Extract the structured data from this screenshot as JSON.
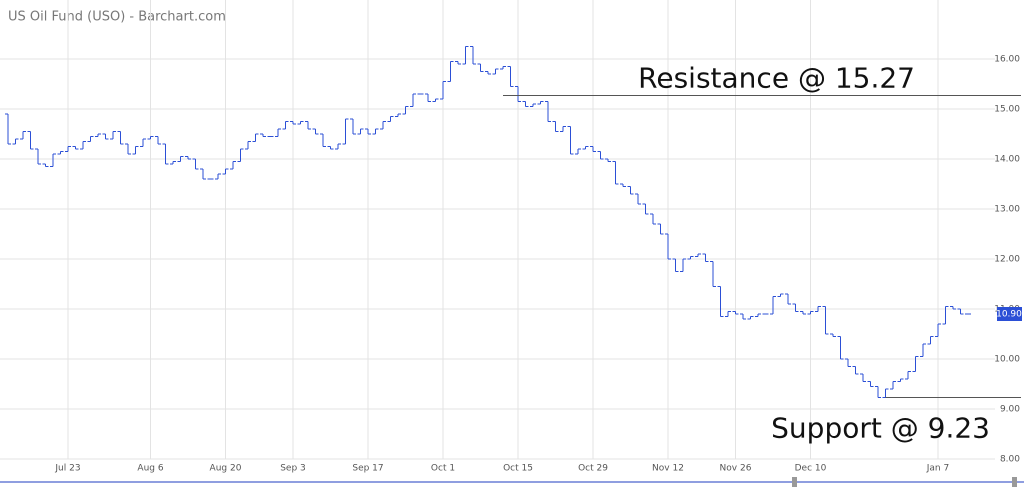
{
  "chart_data": {
    "type": "ohlc",
    "title": "US Oil Fund (USO) - Barchart.com",
    "categories": [
      null,
      null,
      null,
      null,
      null,
      null,
      null,
      null,
      "Jul 23",
      null,
      null,
      null,
      null,
      null,
      null,
      null,
      null,
      null,
      null,
      "Aug 6",
      null,
      null,
      null,
      null,
      null,
      null,
      null,
      null,
      null,
      "Aug 20",
      null,
      null,
      null,
      null,
      null,
      null,
      null,
      null,
      "Sep 3",
      null,
      null,
      null,
      null,
      null,
      null,
      null,
      null,
      null,
      "Sep 17",
      null,
      null,
      null,
      null,
      null,
      null,
      null,
      null,
      null,
      "Oct 1",
      null,
      null,
      null,
      null,
      null,
      null,
      null,
      null,
      null,
      "Oct 15",
      null,
      null,
      null,
      null,
      null,
      null,
      null,
      null,
      null,
      "Oct 29",
      null,
      null,
      null,
      null,
      null,
      null,
      null,
      null,
      null,
      "Nov 12",
      null,
      null,
      null,
      null,
      null,
      null,
      null,
      null,
      "Nov 26",
      null,
      null,
      null,
      null,
      null,
      null,
      null,
      null,
      null,
      "Dec 10",
      null,
      null,
      null,
      null,
      null,
      null,
      null,
      null,
      null,
      null,
      null,
      null,
      null,
      null,
      null,
      null,
      "Jan 7",
      null,
      null,
      null,
      null
    ],
    "series": [
      {
        "name": "USO",
        "color": "#2b4fd6",
        "open": [
          14.9,
          14.3,
          14.4,
          14.55,
          14.2,
          13.9,
          13.85,
          14.1,
          14.15,
          14.25,
          14.2,
          14.35,
          14.45,
          14.5,
          14.4,
          14.55,
          14.3,
          14.1,
          14.25,
          14.4,
          14.45,
          14.3,
          13.9,
          13.95,
          14.05,
          14.0,
          13.8,
          13.6,
          13.6,
          13.7,
          13.8,
          13.95,
          14.2,
          14.35,
          14.5,
          14.45,
          14.45,
          14.6,
          14.75,
          14.7,
          14.75,
          14.6,
          14.5,
          14.25,
          14.2,
          14.3,
          14.8,
          14.5,
          14.6,
          14.5,
          14.6,
          14.75,
          14.85,
          14.9,
          15.05,
          15.3,
          15.3,
          15.15,
          15.2,
          15.55,
          15.95,
          15.9,
          16.25,
          15.9,
          15.75,
          15.7,
          15.8,
          15.85,
          15.45,
          15.15,
          15.05,
          15.1,
          15.15,
          14.75,
          14.55,
          14.65,
          14.1,
          14.2,
          14.25,
          14.15,
          14.0,
          13.95,
          13.5,
          13.45,
          13.3,
          13.1,
          12.9,
          12.7,
          12.5,
          12.0,
          11.75,
          12.0,
          12.05,
          12.1,
          11.95,
          11.45,
          10.85,
          10.95,
          10.9,
          10.8,
          10.85,
          10.9,
          10.9,
          11.25,
          11.3,
          11.1,
          10.95,
          10.9,
          10.95,
          11.05,
          10.5,
          10.45,
          10.0,
          9.85,
          9.7,
          9.55,
          9.45,
          9.23,
          9.4,
          9.55,
          9.6,
          9.75,
          10.05,
          10.3,
          10.45,
          10.7,
          11.05,
          11.0,
          10.9
        ],
        "close": [
          14.3,
          14.4,
          14.55,
          14.2,
          13.9,
          13.85,
          14.1,
          14.15,
          14.25,
          14.2,
          14.35,
          14.45,
          14.5,
          14.4,
          14.55,
          14.3,
          14.1,
          14.25,
          14.4,
          14.45,
          14.3,
          13.9,
          13.95,
          14.05,
          14.0,
          13.8,
          13.6,
          13.6,
          13.7,
          13.8,
          13.95,
          14.2,
          14.35,
          14.5,
          14.45,
          14.45,
          14.6,
          14.75,
          14.7,
          14.75,
          14.6,
          14.5,
          14.25,
          14.2,
          14.3,
          14.8,
          14.5,
          14.6,
          14.5,
          14.6,
          14.75,
          14.85,
          14.9,
          15.05,
          15.3,
          15.3,
          15.15,
          15.2,
          15.55,
          15.95,
          15.9,
          16.25,
          15.9,
          15.75,
          15.7,
          15.8,
          15.85,
          15.45,
          15.15,
          15.05,
          15.1,
          15.15,
          14.75,
          14.55,
          14.65,
          14.1,
          14.2,
          14.25,
          14.15,
          14.0,
          13.95,
          13.5,
          13.45,
          13.3,
          13.1,
          12.9,
          12.7,
          12.5,
          12.0,
          11.75,
          12.0,
          12.05,
          12.1,
          11.95,
          11.45,
          10.85,
          10.95,
          10.9,
          10.8,
          10.85,
          10.9,
          10.9,
          11.25,
          11.3,
          11.1,
          10.95,
          10.9,
          10.95,
          11.05,
          10.5,
          10.45,
          10.0,
          9.85,
          9.7,
          9.55,
          9.45,
          9.23,
          9.4,
          9.55,
          9.6,
          9.75,
          10.05,
          10.3,
          10.45,
          10.7,
          11.05,
          11.0,
          10.9,
          10.9
        ]
      }
    ],
    "last": {
      "value": 10.9,
      "label": "10.90"
    },
    "levels": [
      {
        "text": "Resistance @ 15.27",
        "value": 15.27
      },
      {
        "text": "Support @ 9.23",
        "value": 9.23
      }
    ],
    "ylim": [
      8,
      16.5
    ],
    "yticks": [
      {
        "value": 8,
        "label": "8.00"
      },
      {
        "value": 9,
        "label": "9.00"
      },
      {
        "value": 10,
        "label": "10.00"
      },
      {
        "value": 11,
        "label": "11.00"
      },
      {
        "value": 12,
        "label": "12.00"
      },
      {
        "value": 13,
        "label": "13.00"
      },
      {
        "value": 14,
        "label": "14.00"
      },
      {
        "value": 15,
        "label": "15.00"
      },
      {
        "value": 16,
        "label": "16.00"
      }
    ],
    "grid": true
  }
}
